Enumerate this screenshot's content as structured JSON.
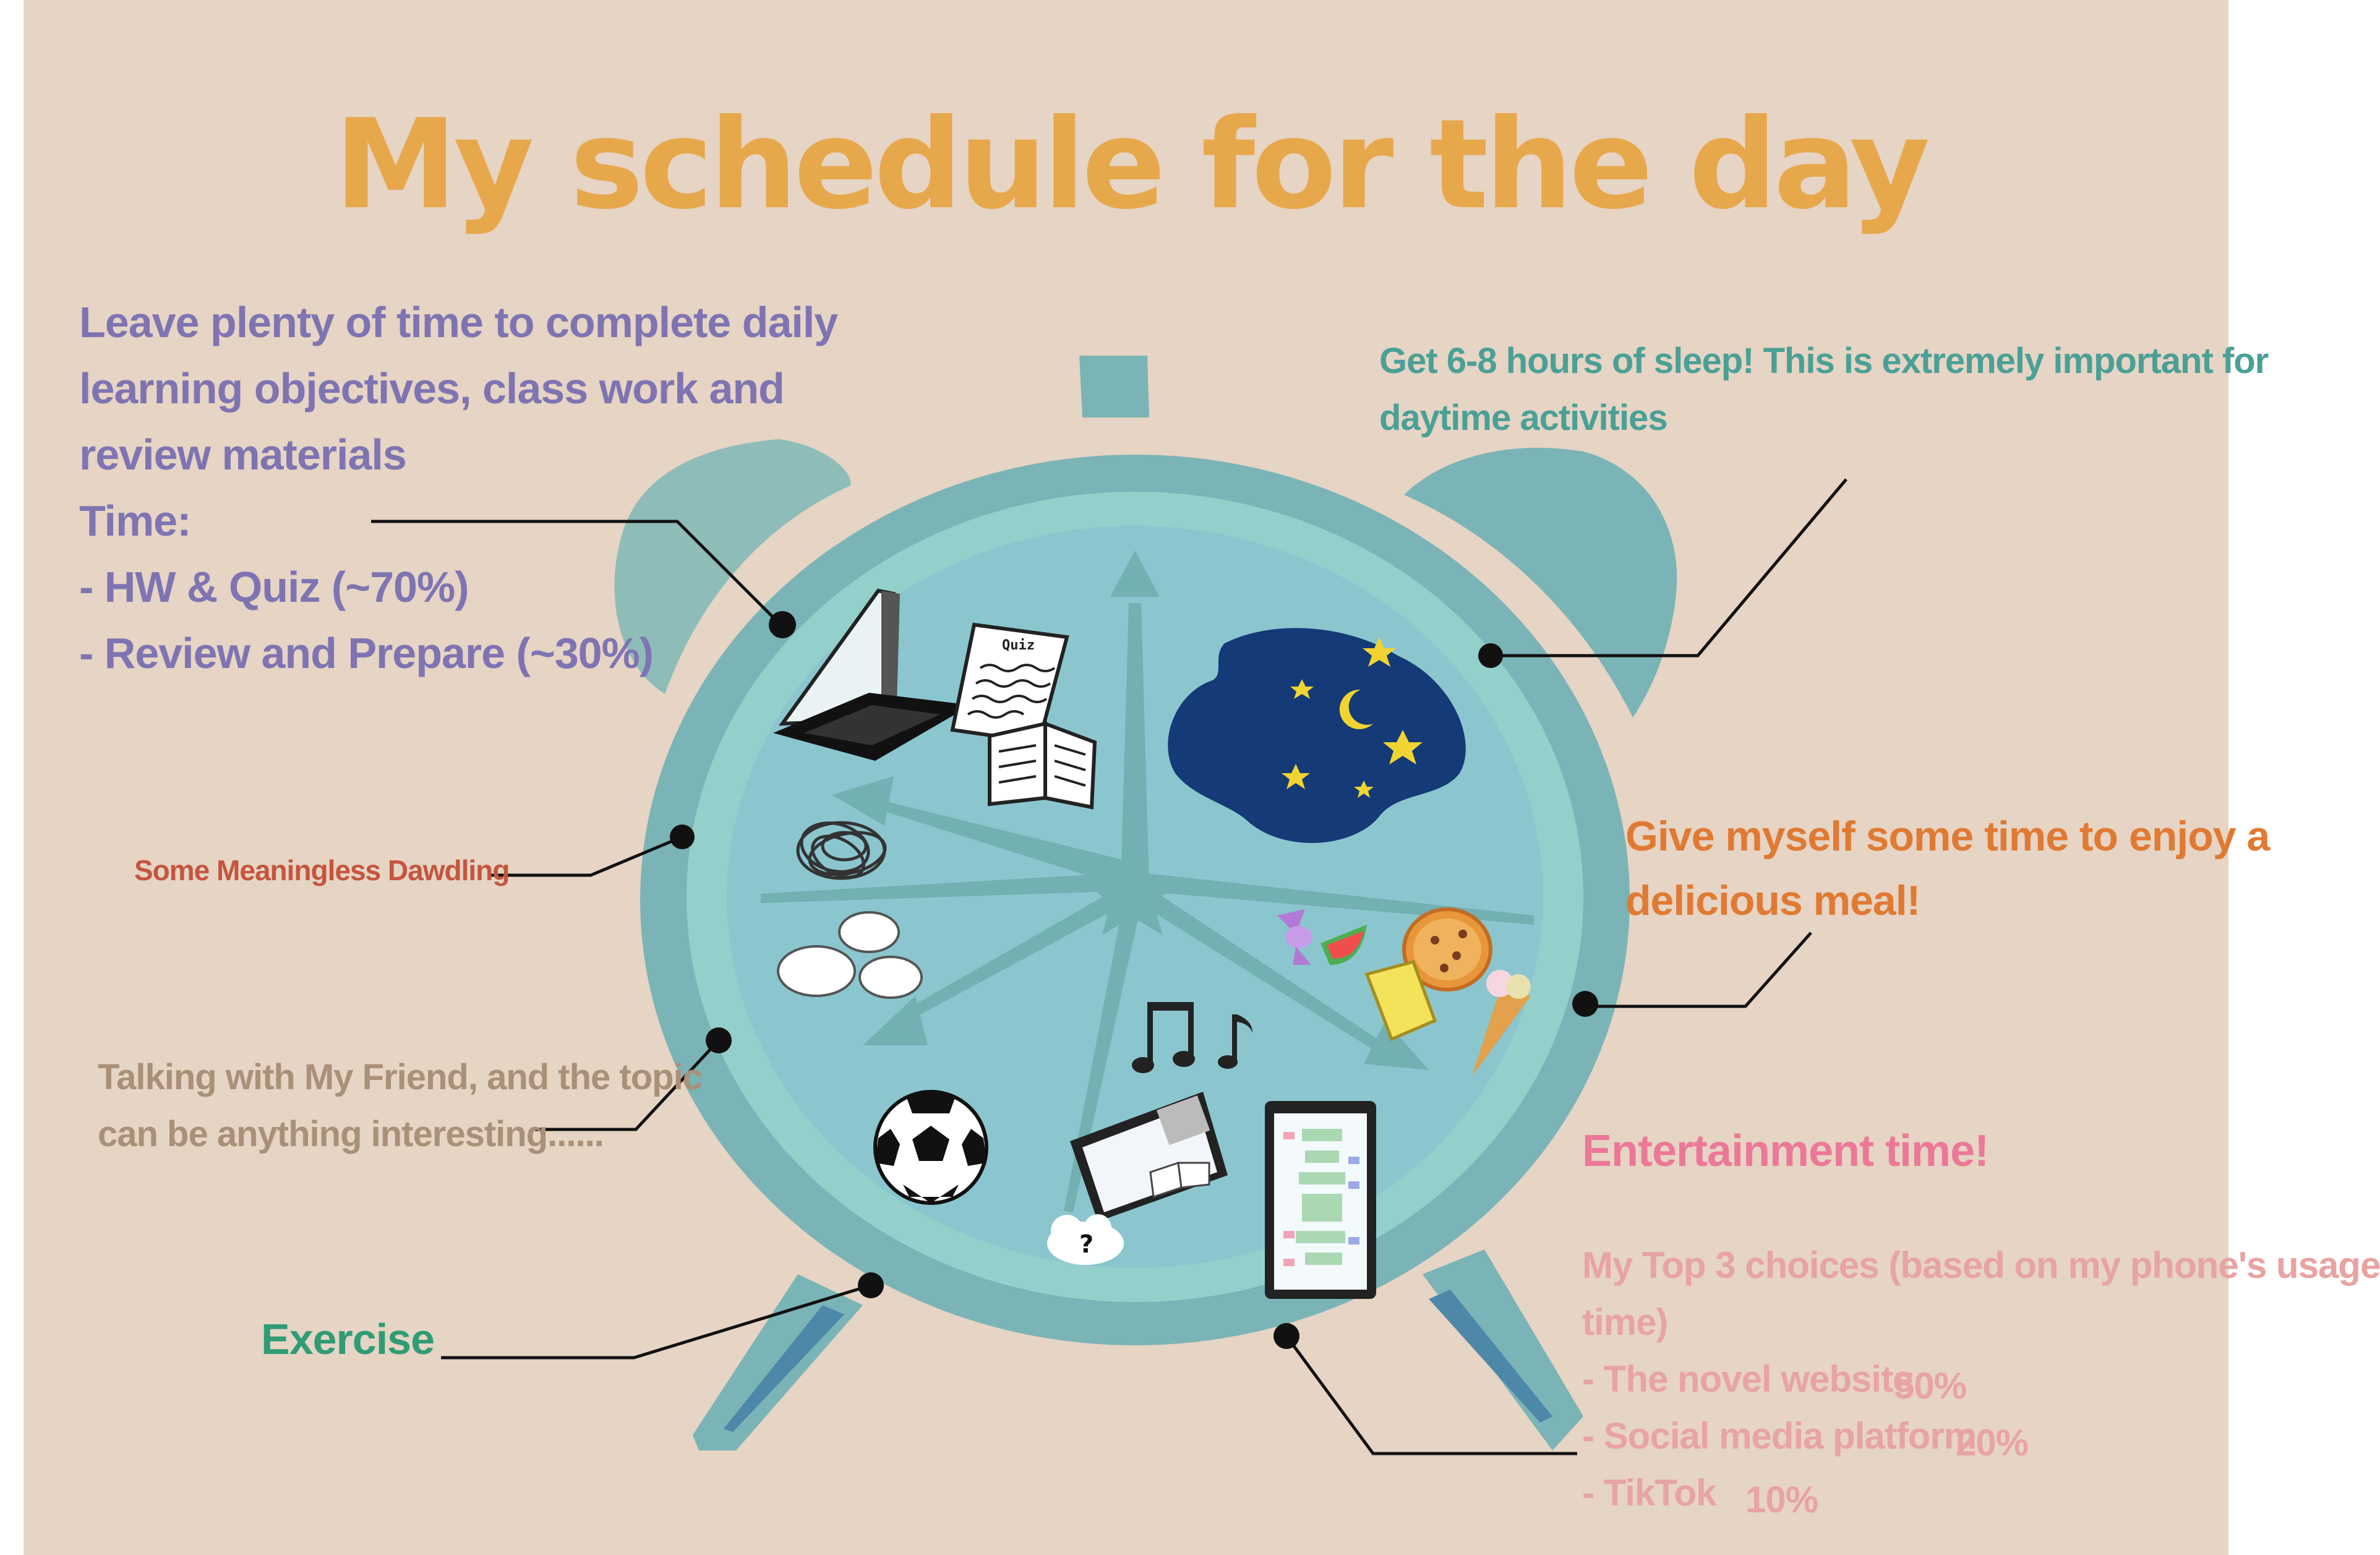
{
  "title": "My schedule for the day",
  "study": {
    "lines": [
      "Leave plenty of time to complete daily",
      "learning objectives, class work and",
      "review materials",
      "Time:",
      "- HW & Quiz (~70%)",
      "- Review and Prepare (~30%)"
    ]
  },
  "sleep": {
    "lines": [
      "Get 6-8 hours of sleep! This is extremely important for",
      "daytime activities"
    ]
  },
  "dawdling": {
    "text": "Some Meaningless Dawdling"
  },
  "meal": {
    "lines": [
      "Give myself some time to enjoy a",
      "delicious meal!"
    ]
  },
  "friend": {
    "lines": [
      "Talking with My Friend, and the topic",
      "can be anything interesting......"
    ]
  },
  "exercise": {
    "text": "Exercise"
  },
  "entertainment": {
    "heading": "Entertainment time!",
    "intro": [
      "My Top 3 choices (based on my phone's usage",
      "time)"
    ],
    "choices": [
      {
        "label": "- The novel website",
        "percent": "50%"
      },
      {
        "label": "- Social media platform",
        "percent": "20%"
      },
      {
        "label": "- TikTok",
        "percent": "10%"
      }
    ]
  },
  "icons": {
    "quiz_label": "Quiz",
    "help_mark": "?"
  },
  "colors": {
    "background": "#e6d4c4",
    "title": "#e7a84c",
    "clock_outer": "#7ab4b6",
    "clock_ring": "#93d0cc",
    "clock_face": "#8bc6cf",
    "hands": "#72b0b2",
    "study_text": "#7f74b2",
    "sleep_text": "#4aa096",
    "dawdling_text": "#c5553e",
    "meal_text": "#e07a33",
    "friend_text": "#a99079",
    "exercise_text": "#2f9c75",
    "entertainment_heading": "#ec7898",
    "entertainment_text": "#e8a3a3"
  }
}
